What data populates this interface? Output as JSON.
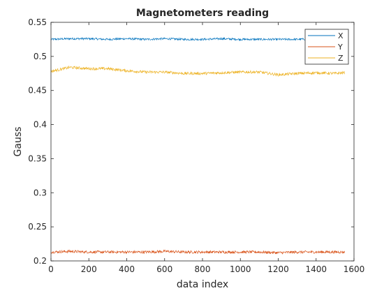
{
  "chart_data": {
    "type": "line",
    "title": "Magnetometers reading",
    "xlabel": "data index",
    "ylabel": "Gauss",
    "xlim": [
      0,
      1600
    ],
    "ylim": [
      0.2,
      0.55
    ],
    "xticks": [
      0,
      200,
      400,
      600,
      800,
      1000,
      1200,
      1400,
      1600
    ],
    "yticks": [
      0.2,
      0.25,
      0.3,
      0.35,
      0.4,
      0.45,
      0.5,
      0.55
    ],
    "xtick_labels": [
      "0",
      "200",
      "400",
      "600",
      "800",
      "1000",
      "1200",
      "1400",
      "1600"
    ],
    "ytick_labels": [
      "0.2",
      "0.25",
      "0.3",
      "0.35",
      "0.4",
      "0.45",
      "0.5",
      "0.55"
    ],
    "grid": false,
    "legend_position": "top-right",
    "series": [
      {
        "name": "X",
        "color": "#0072BD",
        "x": [
          0,
          100,
          200,
          300,
          400,
          500,
          600,
          700,
          800,
          900,
          1000,
          1100,
          1200,
          1300,
          1400,
          1500,
          1550
        ],
        "values": [
          0.525,
          0.526,
          0.526,
          0.525,
          0.526,
          0.525,
          0.526,
          0.525,
          0.525,
          0.526,
          0.525,
          0.525,
          0.525,
          0.525,
          0.526,
          0.526,
          0.525
        ],
        "noise": 0.0015
      },
      {
        "name": "Y",
        "color": "#D95319",
        "x": [
          0,
          100,
          200,
          300,
          400,
          500,
          600,
          700,
          800,
          900,
          1000,
          1100,
          1200,
          1300,
          1400,
          1500,
          1550
        ],
        "values": [
          0.213,
          0.214,
          0.213,
          0.213,
          0.213,
          0.213,
          0.214,
          0.213,
          0.213,
          0.213,
          0.213,
          0.213,
          0.212,
          0.213,
          0.213,
          0.213,
          0.213
        ],
        "noise": 0.002
      },
      {
        "name": "Z",
        "color": "#EDB120",
        "x": [
          0,
          100,
          200,
          300,
          400,
          500,
          600,
          700,
          800,
          900,
          1000,
          1100,
          1200,
          1300,
          1400,
          1500,
          1550
        ],
        "values": [
          0.478,
          0.484,
          0.482,
          0.482,
          0.479,
          0.477,
          0.477,
          0.475,
          0.475,
          0.476,
          0.477,
          0.477,
          0.473,
          0.475,
          0.476,
          0.475,
          0.476
        ],
        "noise": 0.002
      }
    ]
  }
}
